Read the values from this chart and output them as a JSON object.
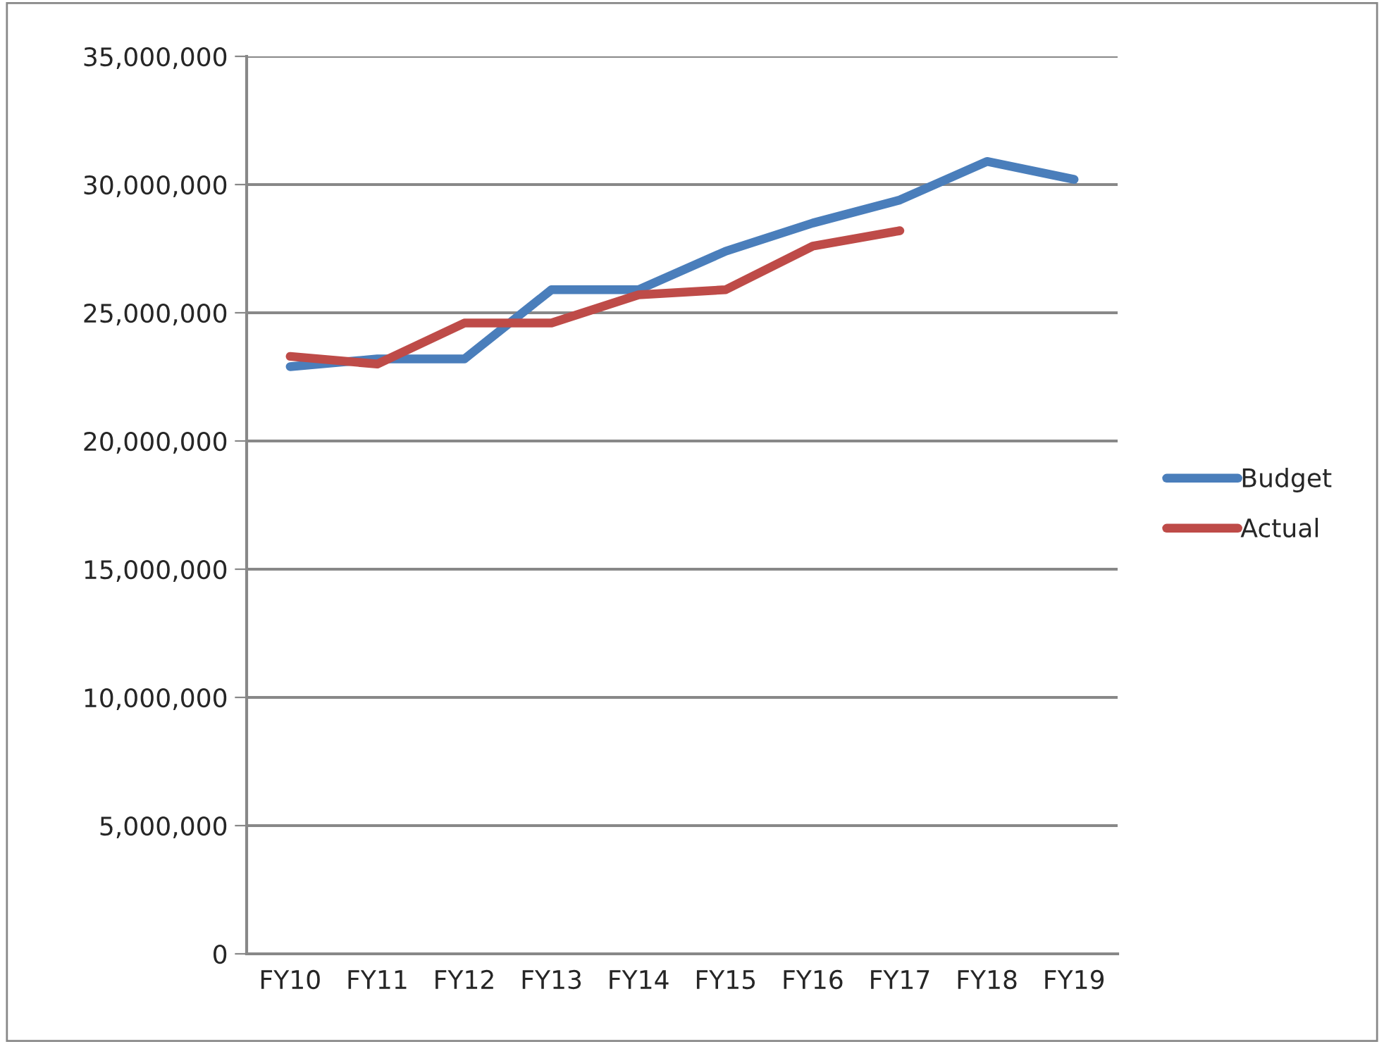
{
  "chart_data": {
    "type": "line",
    "categories": [
      "FY10",
      "FY11",
      "FY12",
      "FY13",
      "FY14",
      "FY15",
      "FY16",
      "FY17",
      "FY18",
      "FY19"
    ],
    "series": [
      {
        "name": "Budget",
        "color": "#4a7ebb",
        "values": [
          22900000,
          23200000,
          23200000,
          25900000,
          25900000,
          27400000,
          28500000,
          29400000,
          30900000,
          30200000
        ]
      },
      {
        "name": "Actual",
        "color": "#be4b48",
        "values": [
          23300000,
          23000000,
          24600000,
          24600000,
          25700000,
          25900000,
          27600000,
          28200000,
          null,
          null
        ]
      }
    ],
    "ylim": [
      0,
      35000000
    ],
    "yticks": [
      {
        "value": 0,
        "label": "0"
      },
      {
        "value": 5000000,
        "label": "5,000,000"
      },
      {
        "value": 10000000,
        "label": "10,000,000"
      },
      {
        "value": 15000000,
        "label": "15,000,000"
      },
      {
        "value": 20000000,
        "label": "20,000,000"
      },
      {
        "value": 25000000,
        "label": "25,000,000"
      },
      {
        "value": 30000000,
        "label": "30,000,000"
      },
      {
        "value": 35000000,
        "label": "35,000,000"
      }
    ],
    "grid": "y",
    "legend": "right",
    "marker": "none",
    "line_style": "solid"
  }
}
